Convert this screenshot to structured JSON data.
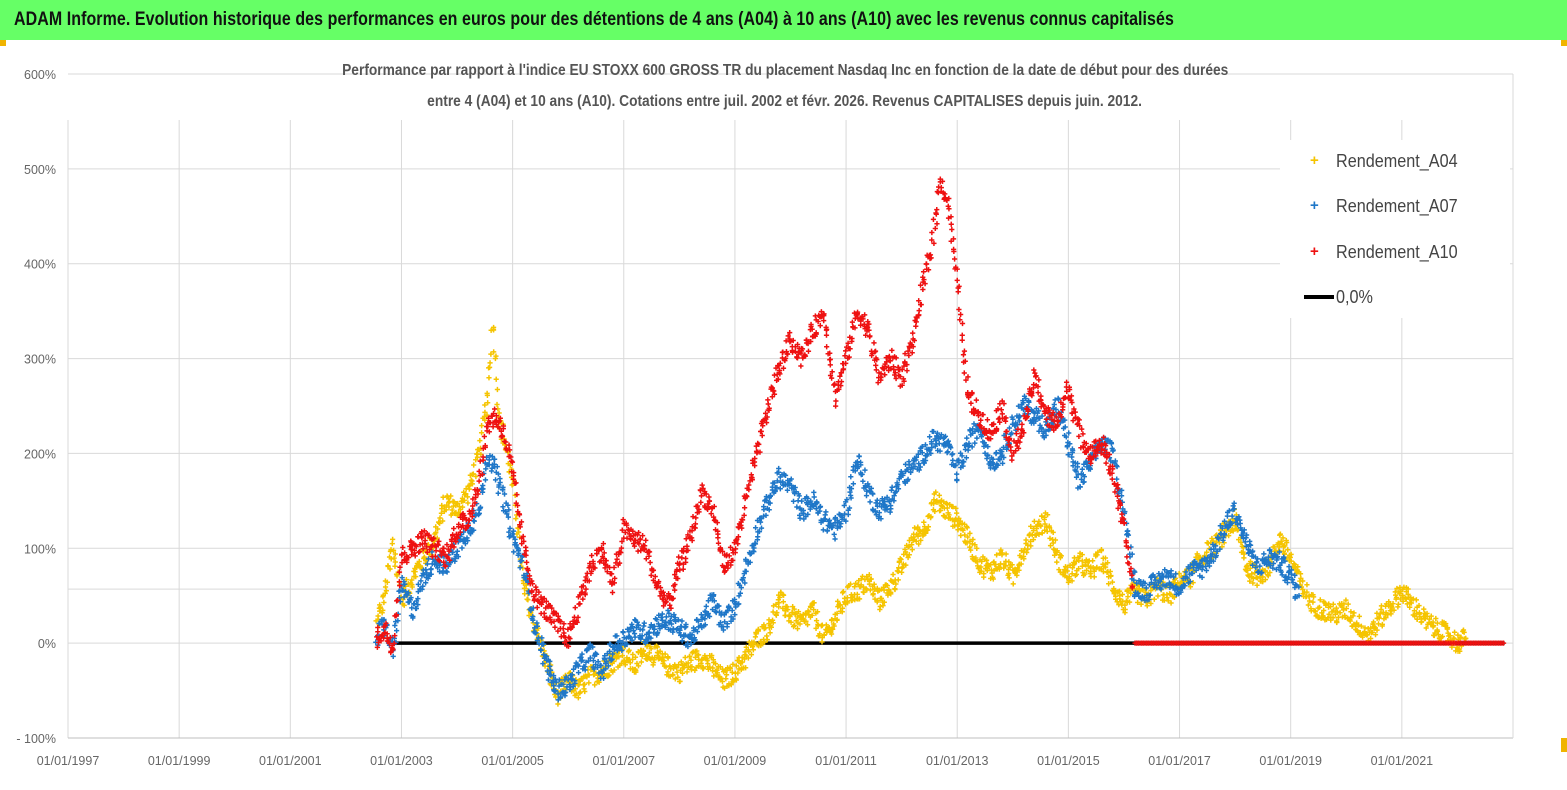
{
  "header": {
    "title": "ADAM Informe. Evolution historique des performances en euros pour des détentions de 4 ans (A04) à 10 ans (A10) avec les revenus connus capitalisés",
    "background": "#66ff66"
  },
  "chart_data": {
    "type": "scatter",
    "title_line1": "Performance par rapport à l'indice EU STOXX 600 GROSS TR  du placement Nasdaq Inc en fonction de la date de début pour des durées",
    "title_line2": "entre 4 (A04) et 10 ans (A10).  Cotations entre juil. 2002 et févr. 2026.  Revenus CAPITALISES depuis juin. 2012.",
    "x_ticks": [
      "01/01/1997",
      "01/01/1999",
      "01/01/2001",
      "01/01/2003",
      "01/01/2005",
      "01/01/2007",
      "01/01/2009",
      "01/01/2011",
      "01/01/2013",
      "01/01/2015",
      "01/01/2017",
      "01/01/2019",
      "01/01/2021"
    ],
    "y_ticks": [
      "600%",
      "500%",
      "400%",
      "300%",
      "200%",
      "100%",
      "0%",
      "- 100%"
    ],
    "xlim": [
      1997.0,
      2023.0
    ],
    "ylim": [
      -100,
      600
    ],
    "grid": true,
    "legend_position": "top-right",
    "series": [
      {
        "name": "Rendement_A04",
        "color": "#f5c400",
        "points": [
          [
            2002.55,
            20
          ],
          [
            2002.7,
            50
          ],
          [
            2002.85,
            105
          ],
          [
            2003.0,
            45
          ],
          [
            2003.2,
            70
          ],
          [
            2003.4,
            90
          ],
          [
            2003.6,
            110
          ],
          [
            2003.8,
            150
          ],
          [
            2004.0,
            140
          ],
          [
            2004.2,
            160
          ],
          [
            2004.4,
            200
          ],
          [
            2004.55,
            260
          ],
          [
            2004.65,
            340
          ],
          [
            2004.75,
            240
          ],
          [
            2004.9,
            200
          ],
          [
            2005.05,
            150
          ],
          [
            2005.2,
            60
          ],
          [
            2005.4,
            20
          ],
          [
            2005.6,
            -20
          ],
          [
            2005.8,
            -55
          ],
          [
            2006.0,
            -40
          ],
          [
            2006.2,
            -50
          ],
          [
            2006.4,
            -35
          ],
          [
            2006.6,
            -30
          ],
          [
            2006.8,
            -20
          ],
          [
            2007.0,
            -10
          ],
          [
            2007.2,
            -25
          ],
          [
            2007.4,
            -5
          ],
          [
            2007.6,
            -15
          ],
          [
            2007.8,
            -25
          ],
          [
            2008.0,
            -30
          ],
          [
            2008.2,
            -20
          ],
          [
            2008.4,
            -15
          ],
          [
            2008.6,
            -25
          ],
          [
            2008.8,
            -40
          ],
          [
            2009.0,
            -30
          ],
          [
            2009.2,
            -15
          ],
          [
            2009.4,
            5
          ],
          [
            2009.6,
            15
          ],
          [
            2009.8,
            45
          ],
          [
            2010.0,
            30
          ],
          [
            2010.2,
            20
          ],
          [
            2010.4,
            35
          ],
          [
            2010.6,
            5
          ],
          [
            2010.8,
            25
          ],
          [
            2011.0,
            50
          ],
          [
            2011.2,
            55
          ],
          [
            2011.4,
            65
          ],
          [
            2011.6,
            45
          ],
          [
            2011.8,
            60
          ],
          [
            2012.0,
            80
          ],
          [
            2012.2,
            110
          ],
          [
            2012.4,
            120
          ],
          [
            2012.6,
            150
          ],
          [
            2012.8,
            140
          ],
          [
            2013.0,
            130
          ],
          [
            2013.2,
            110
          ],
          [
            2013.4,
            85
          ],
          [
            2013.6,
            75
          ],
          [
            2013.8,
            90
          ],
          [
            2014.0,
            70
          ],
          [
            2014.2,
            100
          ],
          [
            2014.4,
            120
          ],
          [
            2014.6,
            130
          ],
          [
            2014.8,
            90
          ],
          [
            2015.0,
            70
          ],
          [
            2015.2,
            85
          ],
          [
            2015.4,
            75
          ],
          [
            2015.6,
            90
          ],
          [
            2015.8,
            60
          ],
          [
            2016.0,
            40
          ],
          [
            2016.2,
            55
          ],
          [
            2016.4,
            45
          ],
          [
            2016.6,
            60
          ],
          [
            2016.8,
            50
          ],
          [
            2017.0,
            65
          ],
          [
            2017.2,
            70
          ],
          [
            2017.4,
            90
          ],
          [
            2017.6,
            100
          ],
          [
            2017.8,
            115
          ],
          [
            2018.0,
            130
          ],
          [
            2018.2,
            80
          ],
          [
            2018.4,
            70
          ],
          [
            2018.6,
            80
          ],
          [
            2018.8,
            110
          ],
          [
            2019.0,
            90
          ],
          [
            2019.2,
            60
          ],
          [
            2019.4,
            40
          ],
          [
            2019.6,
            35
          ],
          [
            2019.8,
            30
          ],
          [
            2020.0,
            35
          ],
          [
            2020.2,
            20
          ],
          [
            2020.4,
            10
          ],
          [
            2020.6,
            25
          ],
          [
            2020.8,
            40
          ],
          [
            2021.0,
            55
          ],
          [
            2021.2,
            40
          ],
          [
            2021.4,
            25
          ],
          [
            2021.6,
            15
          ],
          [
            2021.8,
            10
          ],
          [
            2022.0,
            0
          ],
          [
            2022.15,
            5
          ]
        ]
      },
      {
        "name": "Rendement_A07",
        "color": "#1f77c8",
        "points": [
          [
            2002.55,
            5
          ],
          [
            2002.7,
            20
          ],
          [
            2002.85,
            -10
          ],
          [
            2003.0,
            60
          ],
          [
            2003.2,
            35
          ],
          [
            2003.4,
            70
          ],
          [
            2003.6,
            90
          ],
          [
            2003.8,
            80
          ],
          [
            2004.0,
            100
          ],
          [
            2004.2,
            120
          ],
          [
            2004.4,
            140
          ],
          [
            2004.55,
            200
          ],
          [
            2004.7,
            180
          ],
          [
            2004.85,
            150
          ],
          [
            2005.0,
            110
          ],
          [
            2005.2,
            80
          ],
          [
            2005.4,
            20
          ],
          [
            2005.6,
            -20
          ],
          [
            2005.8,
            -50
          ],
          [
            2006.0,
            -45
          ],
          [
            2006.2,
            -25
          ],
          [
            2006.4,
            -10
          ],
          [
            2006.6,
            -30
          ],
          [
            2006.8,
            -5
          ],
          [
            2007.0,
            5
          ],
          [
            2007.2,
            15
          ],
          [
            2007.4,
            10
          ],
          [
            2007.6,
            20
          ],
          [
            2007.8,
            25
          ],
          [
            2008.0,
            15
          ],
          [
            2008.2,
            5
          ],
          [
            2008.4,
            20
          ],
          [
            2008.6,
            45
          ],
          [
            2008.8,
            20
          ],
          [
            2009.0,
            40
          ],
          [
            2009.2,
            80
          ],
          [
            2009.4,
            120
          ],
          [
            2009.6,
            150
          ],
          [
            2009.8,
            175
          ],
          [
            2010.0,
            165
          ],
          [
            2010.2,
            140
          ],
          [
            2010.4,
            150
          ],
          [
            2010.6,
            130
          ],
          [
            2010.8,
            120
          ],
          [
            2011.0,
            140
          ],
          [
            2011.2,
            195
          ],
          [
            2011.4,
            160
          ],
          [
            2011.6,
            140
          ],
          [
            2011.8,
            150
          ],
          [
            2012.0,
            175
          ],
          [
            2012.2,
            185
          ],
          [
            2012.4,
            200
          ],
          [
            2012.6,
            215
          ],
          [
            2012.8,
            210
          ],
          [
            2013.0,
            180
          ],
          [
            2013.2,
            210
          ],
          [
            2013.4,
            230
          ],
          [
            2013.6,
            190
          ],
          [
            2013.8,
            200
          ],
          [
            2014.0,
            230
          ],
          [
            2014.2,
            250
          ],
          [
            2014.4,
            240
          ],
          [
            2014.6,
            225
          ],
          [
            2014.8,
            250
          ],
          [
            2015.0,
            210
          ],
          [
            2015.2,
            170
          ],
          [
            2015.4,
            190
          ],
          [
            2015.6,
            210
          ],
          [
            2015.8,
            200
          ],
          [
            2016.0,
            140
          ],
          [
            2016.2,
            60
          ],
          [
            2016.4,
            55
          ],
          [
            2016.6,
            65
          ],
          [
            2016.8,
            70
          ],
          [
            2017.0,
            60
          ],
          [
            2017.2,
            75
          ],
          [
            2017.4,
            80
          ],
          [
            2017.6,
            95
          ],
          [
            2017.8,
            120
          ],
          [
            2018.0,
            140
          ],
          [
            2018.2,
            105
          ],
          [
            2018.4,
            80
          ],
          [
            2018.6,
            90
          ],
          [
            2018.8,
            85
          ],
          [
            2019.0,
            70
          ],
          [
            2019.15,
            50
          ]
        ]
      },
      {
        "name": "Rendement_A10",
        "color": "#ee1111",
        "points": [
          [
            2002.55,
            5
          ],
          [
            2002.7,
            15
          ],
          [
            2002.85,
            -5
          ],
          [
            2003.0,
            90
          ],
          [
            2003.2,
            100
          ],
          [
            2003.4,
            110
          ],
          [
            2003.6,
            100
          ],
          [
            2003.8,
            90
          ],
          [
            2004.0,
            120
          ],
          [
            2004.2,
            130
          ],
          [
            2004.4,
            170
          ],
          [
            2004.55,
            230
          ],
          [
            2004.7,
            240
          ],
          [
            2004.85,
            220
          ],
          [
            2005.0,
            180
          ],
          [
            2005.2,
            100
          ],
          [
            2005.4,
            50
          ],
          [
            2005.6,
            35
          ],
          [
            2005.8,
            20
          ],
          [
            2006.0,
            5
          ],
          [
            2006.2,
            40
          ],
          [
            2006.4,
            80
          ],
          [
            2006.6,
            100
          ],
          [
            2006.8,
            60
          ],
          [
            2007.0,
            120
          ],
          [
            2007.2,
            110
          ],
          [
            2007.4,
            100
          ],
          [
            2007.6,
            60
          ],
          [
            2007.8,
            40
          ],
          [
            2008.0,
            80
          ],
          [
            2008.2,
            110
          ],
          [
            2008.4,
            160
          ],
          [
            2008.6,
            140
          ],
          [
            2008.8,
            80
          ],
          [
            2009.0,
            100
          ],
          [
            2009.2,
            150
          ],
          [
            2009.4,
            200
          ],
          [
            2009.6,
            250
          ],
          [
            2009.8,
            290
          ],
          [
            2010.0,
            320
          ],
          [
            2010.2,
            300
          ],
          [
            2010.4,
            330
          ],
          [
            2010.6,
            350
          ],
          [
            2010.8,
            260
          ],
          [
            2011.0,
            300
          ],
          [
            2011.2,
            350
          ],
          [
            2011.4,
            330
          ],
          [
            2011.6,
            280
          ],
          [
            2011.8,
            300
          ],
          [
            2012.0,
            280
          ],
          [
            2012.2,
            320
          ],
          [
            2012.4,
            380
          ],
          [
            2012.55,
            420
          ],
          [
            2012.7,
            490
          ],
          [
            2012.85,
            460
          ],
          [
            2013.0,
            380
          ],
          [
            2013.2,
            260
          ],
          [
            2013.4,
            240
          ],
          [
            2013.6,
            220
          ],
          [
            2013.8,
            250
          ],
          [
            2014.0,
            200
          ],
          [
            2014.2,
            230
          ],
          [
            2014.4,
            280
          ],
          [
            2014.6,
            240
          ],
          [
            2014.8,
            230
          ],
          [
            2015.0,
            270
          ],
          [
            2015.2,
            220
          ],
          [
            2015.4,
            200
          ],
          [
            2015.6,
            210
          ],
          [
            2015.8,
            180
          ],
          [
            2016.0,
            120
          ],
          [
            2016.15,
            60
          ]
        ]
      },
      {
        "name": "0,0%",
        "color": "#000000",
        "type": "line",
        "points": [
          [
            2002.85,
            0
          ],
          [
            2022.85,
            0
          ]
        ]
      }
    ],
    "flat_red_segment": {
      "from": 2016.2,
      "to": 2022.85,
      "value": 0
    }
  }
}
